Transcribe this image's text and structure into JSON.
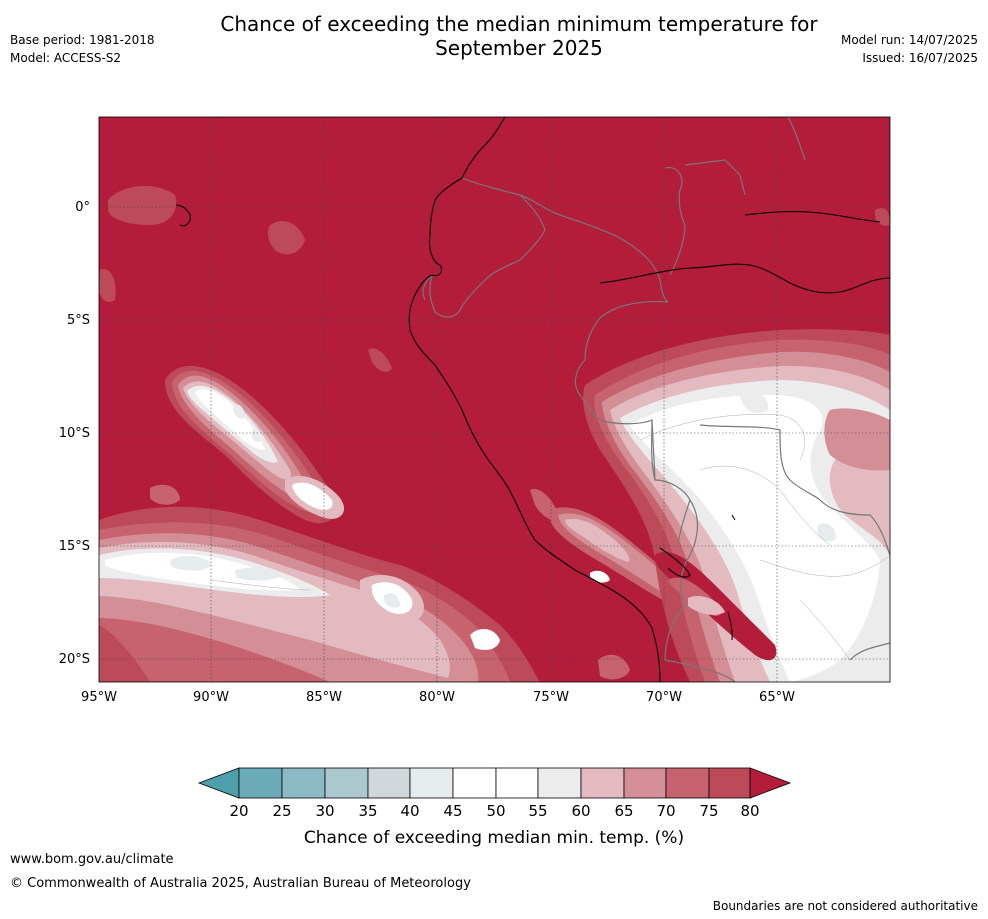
{
  "header": {
    "title_line1": "Chance of exceeding the median minimum temperature for",
    "title_line2": "September 2025",
    "base_period": "Base period: 1981-2018",
    "model": "Model: ACCESS-S2",
    "model_run": "Model run: 14/07/2025",
    "issued": "Issued: 16/07/2025"
  },
  "map": {
    "lat_labels": [
      "0°",
      "5°S",
      "10°S",
      "15°S",
      "20°S"
    ],
    "lon_labels": [
      "95°W",
      "90°W",
      "85°W",
      "80°W",
      "75°W",
      "70°W",
      "65°W"
    ]
  },
  "legend": {
    "title": "Chance of exceeding median min. temp. (%)",
    "ticks": [
      "20",
      "25",
      "30",
      "35",
      "40",
      "45",
      "50",
      "55",
      "60",
      "65",
      "70",
      "75",
      "80"
    ],
    "colors": {
      "below_20": "#4f9fab",
      "20_25": "#6aabb7",
      "25_30": "#8bbac4",
      "30_35": "#aac8ce",
      "35_40": "#d0d6d9",
      "40_45": "#e6ebee",
      "45_50": "#ffffff",
      "50_55": "#ffffff",
      "55_60": "#ececec",
      "60_65": "#e2bac0",
      "65_70": "#d38e96",
      "70_75": "#c6636f",
      "75_80": "#bc4a59",
      "above_80": "#b31d3a"
    }
  },
  "footer": {
    "url": "www.bom.gov.au/climate",
    "copyright": "© Commonwealth of Australia 2025, Australian Bureau of Meteorology",
    "note": "Boundaries are not considered authoritative"
  }
}
